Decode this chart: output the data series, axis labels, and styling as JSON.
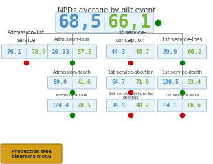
{
  "title": "NPDs average by gilt event",
  "bg_color": "#ffffff",
  "top_box": {
    "blue_val": "68,5",
    "green_val": "66,1",
    "dot": "green"
  },
  "level1": [
    {
      "label": "Admission-1st\nservice",
      "blue_val": "76.1",
      "green_val": "78.9",
      "dot": "red"
    },
    {
      "label": "Admission-loss",
      "blue_val": "10.33",
      "green_val": "57.5",
      "dot": "green"
    },
    {
      "label": "1st service-\nconception",
      "blue_val": "44.3",
      "green_val": "46.7",
      "dot": "red"
    },
    {
      "label": "1st service-loss",
      "blue_val": "69.9",
      "green_val": "66.2",
      "dot": "green"
    }
  ],
  "level2": [
    null,
    [
      {
        "label": "Admission-death",
        "blue_val": "59.0",
        "green_val": "41.6",
        "dot": "green"
      },
      {
        "label": "Admission-sale",
        "blue_val": "124.4",
        "green_val": "70.5",
        "dot": "green"
      }
    ],
    [
      {
        "label": "1st service-abortion",
        "blue_val": "64.7",
        "green_val": "71.0",
        "dot": "red"
      },
      {
        "label": "1st service-return to\noestrus",
        "blue_val": "39.5",
        "green_val": "40.2",
        "dot": "red"
      }
    ],
    [
      {
        "label": "1st service-death",
        "blue_val": "109.5",
        "green_val": "33.4",
        "dot": "green"
      },
      {
        "label": "1st service-sale",
        "blue_val": "54.1",
        "green_val": "86.6",
        "dot": "red"
      }
    ]
  ],
  "blue_color": "#4b8fc9",
  "green_color": "#7ab535",
  "dot_red": "#cc0000",
  "dot_green": "#008000",
  "box_face": "#e6f3fb",
  "box_edge": "#9ab8cc",
  "line_color": "#999999",
  "button_face": "#d4a017",
  "button_edge": "#a07010",
  "button_text": "Production tree\ndiagrams menu"
}
